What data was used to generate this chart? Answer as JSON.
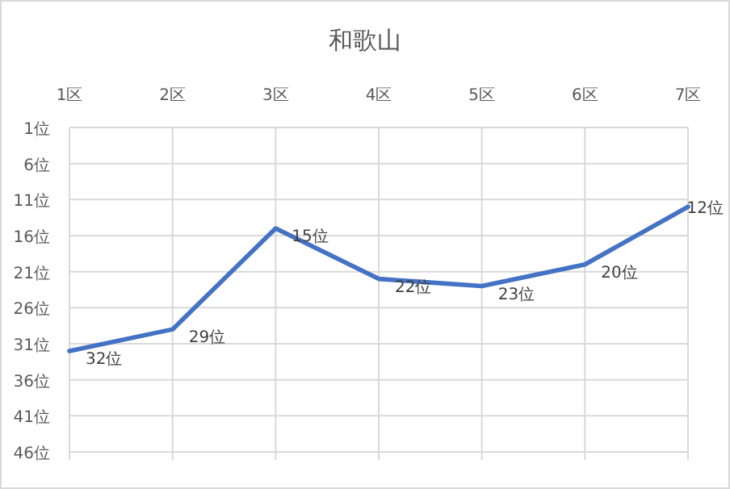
{
  "chart_data": {
    "type": "line",
    "title": "和歌山",
    "categories": [
      "1区",
      "2区",
      "3区",
      "4区",
      "5区",
      "6区",
      "7区"
    ],
    "series": [
      {
        "color": "#4472c4",
        "values": [
          32,
          29,
          15,
          22,
          23,
          20,
          12
        ],
        "value_labels": [
          "32位",
          "29位",
          "15位",
          "22位",
          "23位",
          "20位",
          "12位"
        ]
      }
    ],
    "ylim": [
      46,
      1
    ],
    "yticks": [
      {
        "value": 1,
        "label": "1位"
      },
      {
        "value": 6,
        "label": "6位"
      },
      {
        "value": 11,
        "label": "11位"
      },
      {
        "value": 16,
        "label": "16位"
      },
      {
        "value": 21,
        "label": "21位"
      },
      {
        "value": 26,
        "label": "26位"
      },
      {
        "value": 31,
        "label": "31位"
      },
      {
        "value": 36,
        "label": "36位"
      },
      {
        "value": 41,
        "label": "41位"
      },
      {
        "value": 46,
        "label": "46位"
      }
    ],
    "grid": true,
    "marker": "none",
    "line_style": "solid"
  }
}
